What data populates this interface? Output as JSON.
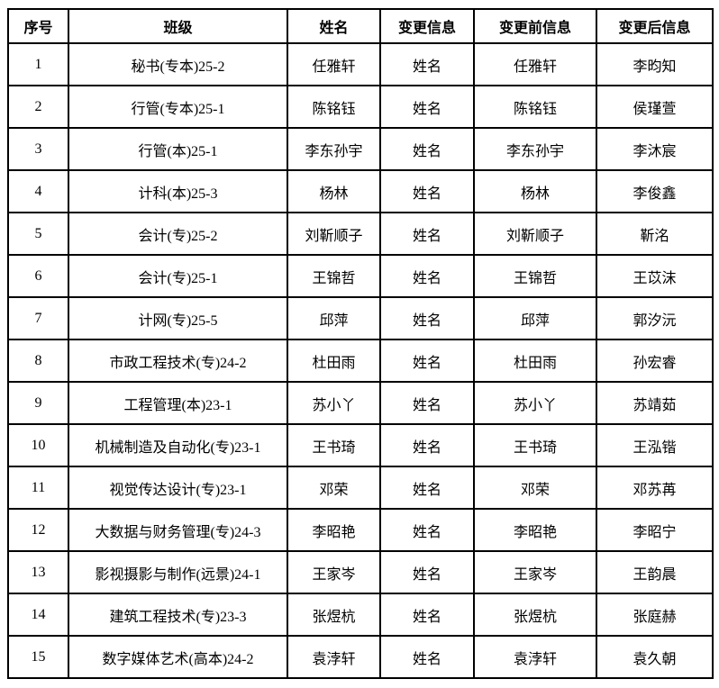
{
  "table": {
    "border_color": "#000000",
    "background": "#ffffff",
    "text_color": "#000000",
    "headers": [
      "序号",
      "班级",
      "姓名",
      "变更信息",
      "变更前信息",
      "变更后信息"
    ],
    "rows": [
      [
        "1",
        "秘书(专本)25-2",
        "任雅轩",
        "姓名",
        "任雅轩",
        "李昀知"
      ],
      [
        "2",
        "行管(专本)25-1",
        "陈铭钰",
        "姓名",
        "陈铭钰",
        "侯瑾萱"
      ],
      [
        "3",
        "行管(本)25-1",
        "李东孙宇",
        "姓名",
        "李东孙宇",
        "李沐宸"
      ],
      [
        "4",
        "计科(本)25-3",
        "杨林",
        "姓名",
        "杨林",
        "李俊鑫"
      ],
      [
        "5",
        "会计(专)25-2",
        "刘靳顺子",
        "姓名",
        "刘靳顺子",
        "靳洺"
      ],
      [
        "6",
        "会计(专)25-1",
        "王锦哲",
        "姓名",
        "王锦哲",
        "王苡沫"
      ],
      [
        "7",
        "计网(专)25-5",
        "邱萍",
        "姓名",
        "邱萍",
        "郭汐沅"
      ],
      [
        "8",
        "市政工程技术(专)24-2",
        "杜田雨",
        "姓名",
        "杜田雨",
        "孙宏睿"
      ],
      [
        "9",
        "工程管理(本)23-1",
        "苏小丫",
        "姓名",
        "苏小丫",
        "苏靖茹"
      ],
      [
        "10",
        "机械制造及自动化(专)23-1",
        "王书琦",
        "姓名",
        "王书琦",
        "王泓锴"
      ],
      [
        "11",
        "视觉传达设计(专)23-1",
        "邓荣",
        "姓名",
        "邓荣",
        "邓苏苒"
      ],
      [
        "12",
        "大数据与财务管理(专)24-3",
        "李昭艳",
        "姓名",
        "李昭艳",
        "李昭宁"
      ],
      [
        "13",
        "影视摄影与制作(远景)24-1",
        "王家岑",
        "姓名",
        "王家岑",
        "王韵晨"
      ],
      [
        "14",
        "建筑工程技术(专)23-3",
        "张煜杭",
        "姓名",
        "张煜杭",
        "张庭赫"
      ],
      [
        "15",
        "数字媒体艺术(高本)24-2",
        "袁浡轩",
        "姓名",
        "袁浡轩",
        "袁久朝"
      ]
    ]
  }
}
